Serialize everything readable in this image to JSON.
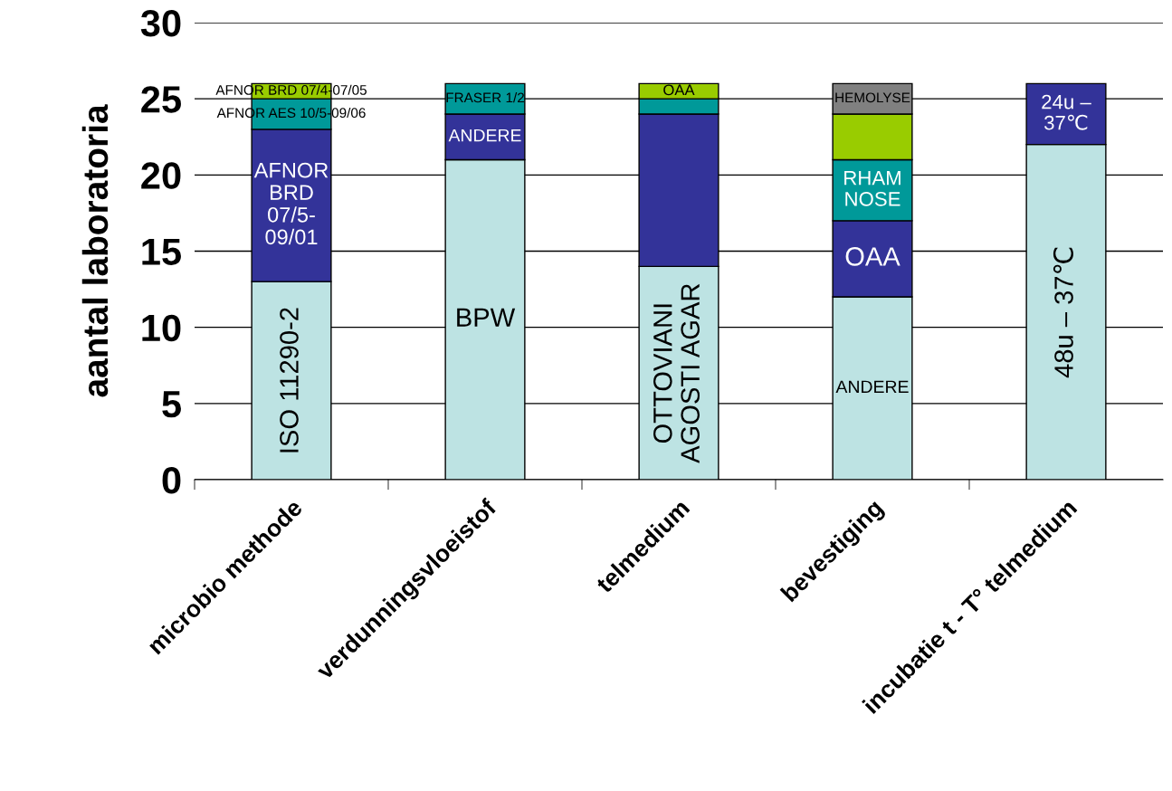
{
  "chart_data": {
    "type": "bar",
    "stacked": true,
    "ylabel": "aantal laboratoria",
    "categories": [
      "microbio methode",
      "verdunningsvloeistof",
      "telmedium",
      "bevestiging",
      "incubatie t - T° telmedium"
    ],
    "series": [
      {
        "name": "ISO 11290-2",
        "color": "#bde3e3",
        "values": [
          13,
          null,
          null,
          null,
          null
        ]
      },
      {
        "name": "BPW",
        "color": "#bde3e3",
        "values": [
          null,
          21,
          null,
          null,
          null
        ]
      },
      {
        "name": "OTTOVIANI\nAGOSTI AGAR",
        "color": "#bde3e3",
        "values": [
          null,
          null,
          14,
          null,
          null
        ]
      },
      {
        "name": "ANDERE",
        "color": "#bde3e3",
        "values": [
          null,
          null,
          null,
          12,
          null
        ]
      },
      {
        "name": "48u – 37℃",
        "color": "#bde3e3",
        "values": [
          null,
          null,
          null,
          null,
          22
        ]
      },
      {
        "name": "AFNOR\nBRD\n07/5-\n09/01",
        "color": "#333399",
        "values": [
          10,
          null,
          null,
          null,
          null
        ]
      },
      {
        "name": "ANDERE",
        "color": "#333399",
        "values": [
          null,
          3,
          null,
          null,
          null
        ]
      },
      {
        "color": "#333399",
        "values": [
          null,
          null,
          10,
          null,
          null
        ]
      },
      {
        "name": "OAA",
        "color": "#333399",
        "values": [
          null,
          null,
          null,
          5,
          null
        ]
      },
      {
        "name": "24u –\n37℃",
        "color": "#333399",
        "values": [
          null,
          null,
          null,
          null,
          4
        ]
      },
      {
        "name": "AFNOR AES 10/5-09/06",
        "color": "#009999",
        "values": [
          2,
          null,
          null,
          null,
          null
        ]
      },
      {
        "name": "FRASER 1/2",
        "color": "#009999",
        "values": [
          null,
          2,
          null,
          null,
          null
        ]
      },
      {
        "color": "#009999",
        "values": [
          null,
          null,
          1,
          null,
          null
        ]
      },
      {
        "name": "RHAM\nNOSE",
        "color": "#009999",
        "values": [
          null,
          null,
          null,
          4,
          null
        ]
      },
      {
        "name": "AFNOR BRD 07/4-07/05",
        "color": "#99cc00",
        "values": [
          1,
          null,
          null,
          null,
          null
        ]
      },
      {
        "name": "OAA",
        "color": "#99cc00",
        "values": [
          null,
          null,
          1,
          null,
          null
        ]
      },
      {
        "color": "#99cc00",
        "values": [
          null,
          null,
          null,
          3,
          null
        ]
      },
      {
        "name": "HEMOLYSE",
        "color": "#808080",
        "values": [
          null,
          null,
          null,
          2,
          null
        ]
      }
    ],
    "ylim": [
      0,
      30
    ],
    "yticks": [
      0,
      5,
      10,
      15,
      20,
      25,
      30
    ],
    "grid": "y",
    "legend": false
  }
}
